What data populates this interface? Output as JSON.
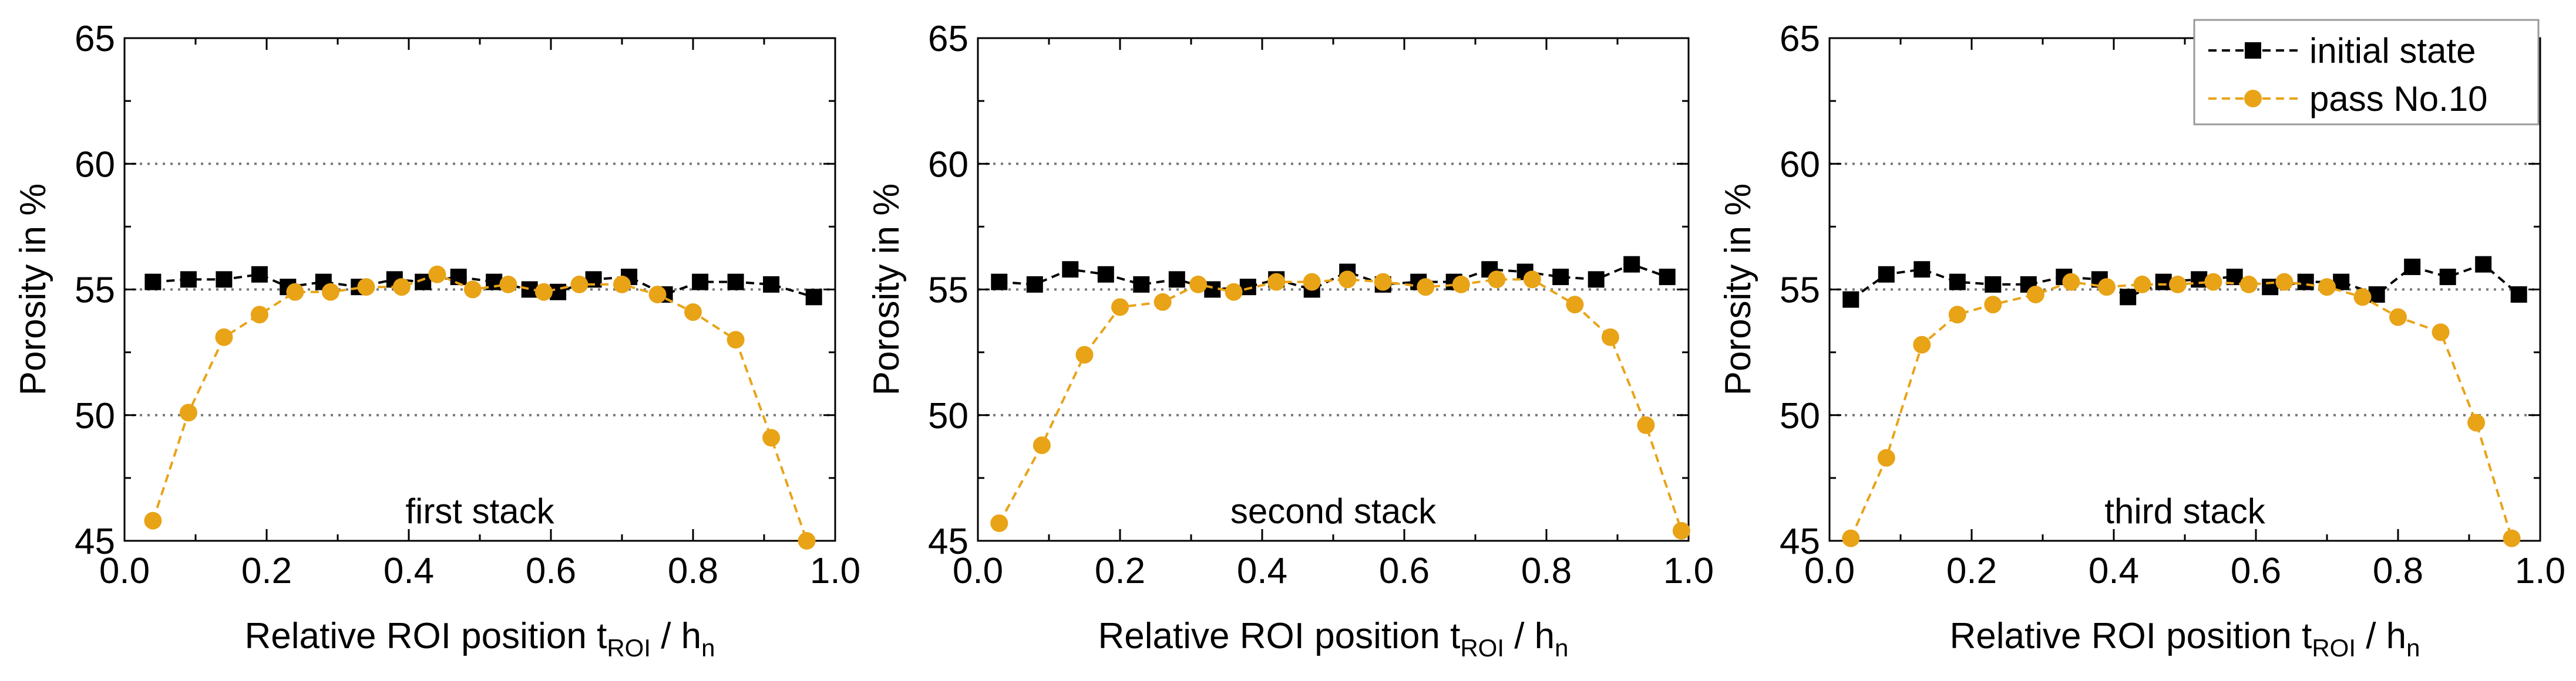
{
  "chart_data": [
    {
      "type": "line",
      "annotation": "first stack",
      "xlabel": {
        "main": "Relative ROI position t",
        "sub1": "ROI",
        "mid": " / h",
        "sub2": "n"
      },
      "ylabel": "Porosity in %",
      "xlim": [
        0.0,
        1.0
      ],
      "ylim": [
        45,
        65
      ],
      "xticks": [
        "0.0",
        "0.2",
        "0.4",
        "0.6",
        "0.8",
        "1.0"
      ],
      "yticks": [
        "45",
        "50",
        "55",
        "60",
        "65"
      ],
      "reference_lines": [
        50,
        55,
        60
      ],
      "series": [
        {
          "name": "initial state",
          "color": "#000000",
          "marker": "square",
          "x": [
            0.04,
            0.09,
            0.14,
            0.19,
            0.23,
            0.28,
            0.33,
            0.38,
            0.42,
            0.47,
            0.52,
            0.57,
            0.61,
            0.66,
            0.71,
            0.76,
            0.81,
            0.86,
            0.91,
            0.97
          ],
          "y": [
            55.3,
            55.4,
            55.4,
            55.6,
            55.1,
            55.3,
            55.1,
            55.4,
            55.3,
            55.5,
            55.3,
            55.0,
            54.9,
            55.4,
            55.5,
            54.8,
            55.3,
            55.3,
            55.2,
            54.7
          ]
        },
        {
          "name": "pass No.10",
          "color": "#E8A317",
          "marker": "circle",
          "x": [
            0.04,
            0.09,
            0.14,
            0.19,
            0.24,
            0.29,
            0.34,
            0.39,
            0.44,
            0.49,
            0.54,
            0.59,
            0.64,
            0.7,
            0.75,
            0.8,
            0.86,
            0.91,
            0.96
          ],
          "y": [
            45.8,
            50.1,
            53.1,
            54.0,
            54.9,
            54.9,
            55.1,
            55.1,
            55.6,
            55.0,
            55.2,
            54.9,
            55.2,
            55.2,
            54.8,
            54.1,
            53.0,
            49.1,
            45.0
          ]
        }
      ]
    },
    {
      "type": "line",
      "annotation": "second stack",
      "xlabel": {
        "main": "Relative ROI position t",
        "sub1": "ROI",
        "mid": " / h",
        "sub2": "n"
      },
      "ylabel": "Porosity in %",
      "xlim": [
        0.0,
        1.0
      ],
      "ylim": [
        45,
        65
      ],
      "xticks": [
        "0.0",
        "0.2",
        "0.4",
        "0.6",
        "0.8",
        "1.0"
      ],
      "yticks": [
        "45",
        "50",
        "55",
        "60",
        "65"
      ],
      "reference_lines": [
        50,
        55,
        60
      ],
      "series": [
        {
          "name": "initial state",
          "color": "#000000",
          "marker": "square",
          "x": [
            0.03,
            0.08,
            0.13,
            0.18,
            0.23,
            0.28,
            0.33,
            0.38,
            0.42,
            0.47,
            0.52,
            0.57,
            0.62,
            0.67,
            0.72,
            0.77,
            0.82,
            0.87,
            0.92,
            0.97
          ],
          "y": [
            55.3,
            55.2,
            55.8,
            55.6,
            55.2,
            55.4,
            55.0,
            55.1,
            55.4,
            55.0,
            55.7,
            55.2,
            55.3,
            55.3,
            55.8,
            55.7,
            55.5,
            55.4,
            56.0,
            55.5
          ]
        },
        {
          "name": "pass No.10",
          "color": "#E8A317",
          "marker": "circle",
          "x": [
            0.03,
            0.09,
            0.15,
            0.2,
            0.26,
            0.31,
            0.36,
            0.42,
            0.47,
            0.52,
            0.57,
            0.63,
            0.68,
            0.73,
            0.78,
            0.84,
            0.89,
            0.94,
            0.99
          ],
          "y": [
            45.7,
            48.8,
            52.4,
            54.3,
            54.5,
            55.2,
            54.9,
            55.3,
            55.3,
            55.4,
            55.3,
            55.1,
            55.2,
            55.4,
            55.4,
            54.4,
            53.1,
            49.6,
            45.4
          ]
        }
      ]
    },
    {
      "type": "line",
      "annotation": "third stack",
      "xlabel": {
        "main": "Relative ROI position t",
        "sub1": "ROI",
        "mid": " / h",
        "sub2": "n"
      },
      "ylabel": "Porosity in %",
      "xlim": [
        0.0,
        1.0
      ],
      "ylim": [
        45,
        65
      ],
      "xticks": [
        "0.0",
        "0.2",
        "0.4",
        "0.6",
        "0.8",
        "1.0"
      ],
      "yticks": [
        "45",
        "50",
        "55",
        "60",
        "65"
      ],
      "reference_lines": [
        50,
        55,
        60
      ],
      "legend": {
        "position": "top-right"
      },
      "series": [
        {
          "name": "initial state",
          "color": "#000000",
          "marker": "square",
          "x": [
            0.03,
            0.08,
            0.13,
            0.18,
            0.23,
            0.28,
            0.33,
            0.38,
            0.42,
            0.47,
            0.52,
            0.57,
            0.62,
            0.67,
            0.72,
            0.77,
            0.82,
            0.87,
            0.92,
            0.97
          ],
          "y": [
            54.6,
            55.6,
            55.8,
            55.3,
            55.2,
            55.2,
            55.5,
            55.4,
            54.7,
            55.3,
            55.4,
            55.5,
            55.1,
            55.3,
            55.3,
            54.8,
            55.9,
            55.5,
            56.0,
            54.8
          ]
        },
        {
          "name": "pass No.10",
          "color": "#E8A317",
          "marker": "circle",
          "x": [
            0.03,
            0.08,
            0.13,
            0.18,
            0.23,
            0.29,
            0.34,
            0.39,
            0.44,
            0.49,
            0.54,
            0.59,
            0.64,
            0.7,
            0.75,
            0.8,
            0.86,
            0.91,
            0.96
          ],
          "y": [
            45.1,
            48.3,
            52.8,
            54.0,
            54.4,
            54.8,
            55.3,
            55.1,
            55.2,
            55.2,
            55.3,
            55.2,
            55.3,
            55.1,
            54.7,
            53.9,
            53.3,
            49.7,
            45.1
          ]
        }
      ]
    }
  ]
}
